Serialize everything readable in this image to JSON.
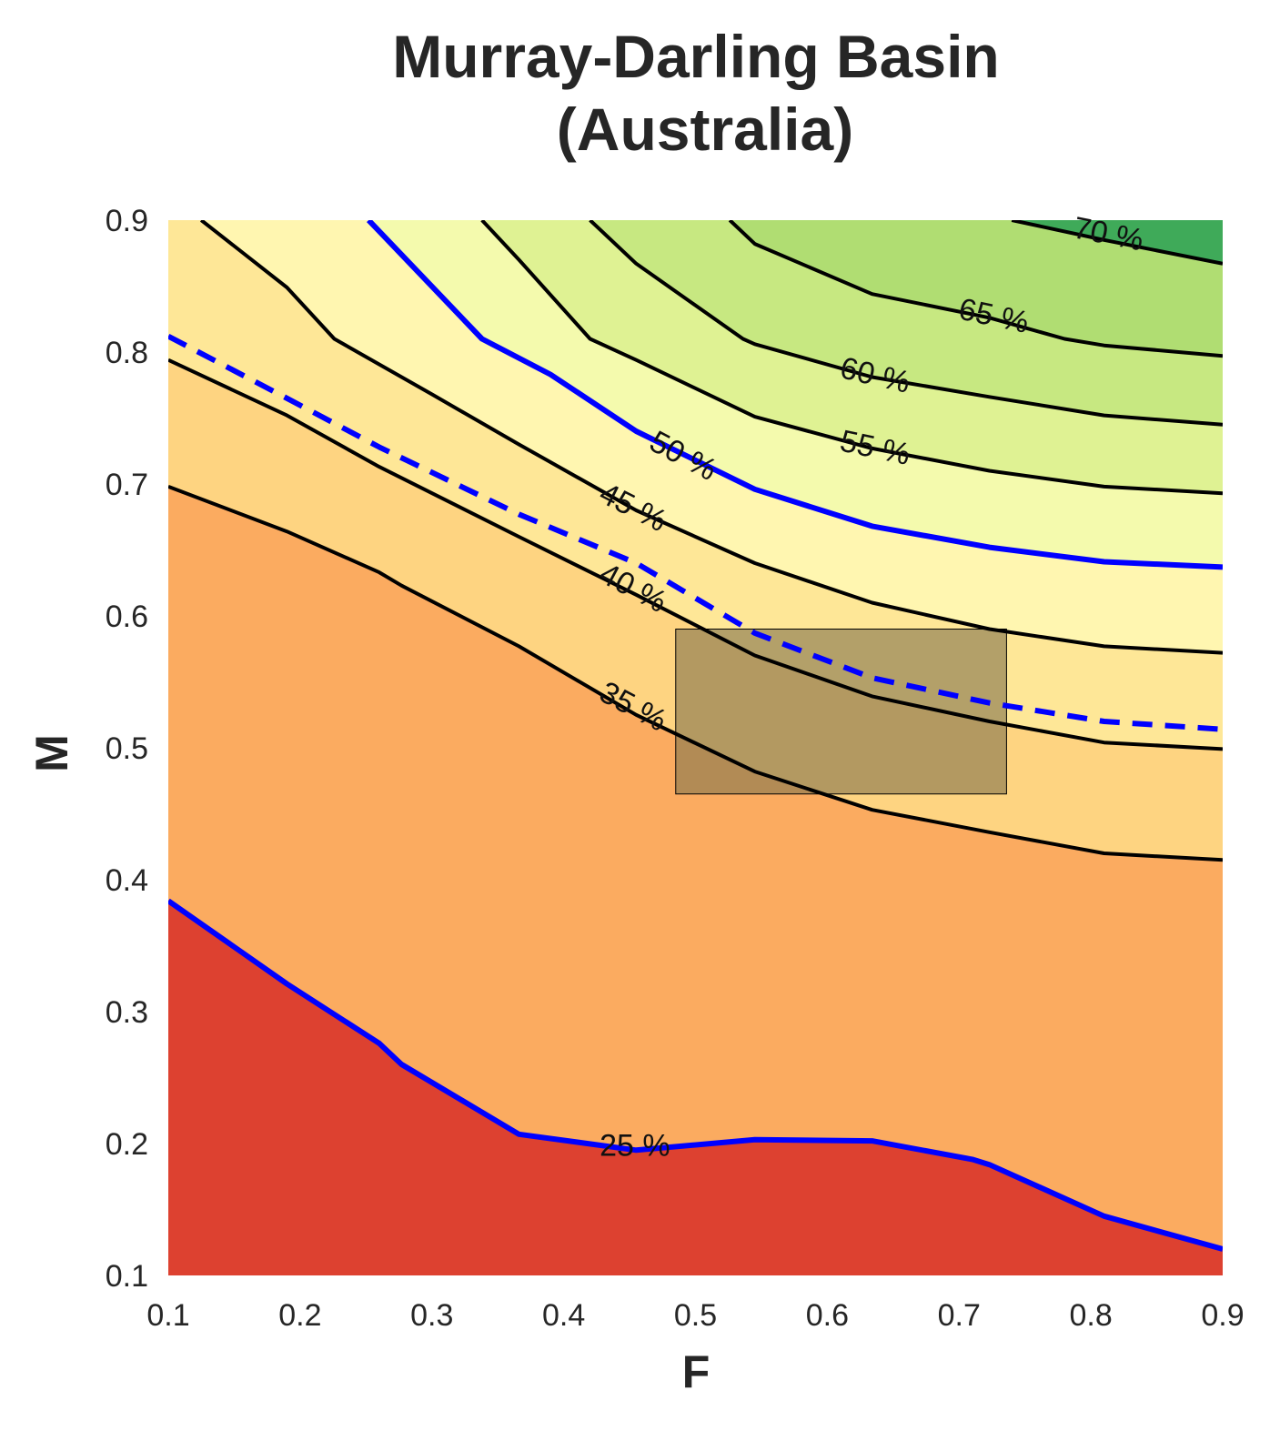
{
  "chart_data": {
    "type": "contour",
    "title": [
      "Murray-Darling Basin",
      "(Australia)"
    ],
    "xlabel": "F",
    "ylabel": "M",
    "xlim": [
      0.1,
      0.9
    ],
    "ylim": [
      0.1,
      0.9
    ],
    "x_ticks": [
      "0.1",
      "0.2",
      "0.3",
      "0.4",
      "0.5",
      "0.6",
      "0.7",
      "0.8",
      "0.9"
    ],
    "y_ticks": [
      "0.1",
      "0.2",
      "0.3",
      "0.4",
      "0.5",
      "0.6",
      "0.7",
      "0.8",
      "0.9"
    ],
    "grid": false,
    "fill_colors": [
      "#dd4130",
      "#fbab60",
      "#fed481",
      "#fee797",
      "#fff6b0",
      "#f4faad",
      "#dff293",
      "#c7e881",
      "#b0dd72",
      "#3faa59"
    ],
    "contours": [
      {
        "level": "25 %",
        "label": "25 %",
        "color": "#0000ff",
        "style": "solid",
        "points": [
          [
            0.1,
            0.384
          ],
          [
            0.19,
            0.321
          ],
          [
            0.26,
            0.276
          ],
          [
            0.277,
            0.26
          ],
          [
            0.366,
            0.207
          ],
          [
            0.455,
            0.195
          ],
          [
            0.545,
            0.203
          ],
          [
            0.634,
            0.202
          ],
          [
            0.71,
            0.188
          ],
          [
            0.723,
            0.184
          ],
          [
            0.81,
            0.145
          ],
          [
            0.9,
            0.12
          ]
        ]
      },
      {
        "level": "35 %",
        "label": "35 %",
        "color": "#000000",
        "style": "solid",
        "points": [
          [
            0.1,
            0.698
          ],
          [
            0.19,
            0.664
          ],
          [
            0.26,
            0.633
          ],
          [
            0.277,
            0.623
          ],
          [
            0.366,
            0.577
          ],
          [
            0.455,
            0.525
          ],
          [
            0.545,
            0.482
          ],
          [
            0.634,
            0.453
          ],
          [
            0.723,
            0.436
          ],
          [
            0.81,
            0.42
          ],
          [
            0.9,
            0.415
          ]
        ]
      },
      {
        "level": "40 %",
        "label": "40 %",
        "color": "#000000",
        "style": "solid",
        "points": [
          [
            0.1,
            0.794
          ],
          [
            0.19,
            0.752
          ],
          [
            0.26,
            0.713
          ],
          [
            0.366,
            0.66
          ],
          [
            0.455,
            0.616
          ],
          [
            0.545,
            0.57
          ],
          [
            0.634,
            0.539
          ],
          [
            0.723,
            0.52
          ],
          [
            0.81,
            0.504
          ],
          [
            0.9,
            0.499
          ]
        ]
      },
      {
        "level": "38 %",
        "label": "",
        "color": "#0000ff",
        "style": "dashed",
        "points": [
          [
            0.1,
            0.812
          ],
          [
            0.19,
            0.765
          ],
          [
            0.26,
            0.728
          ],
          [
            0.366,
            0.677
          ],
          [
            0.455,
            0.64
          ],
          [
            0.545,
            0.587
          ],
          [
            0.634,
            0.553
          ],
          [
            0.723,
            0.534
          ],
          [
            0.81,
            0.52
          ],
          [
            0.9,
            0.514
          ]
        ]
      },
      {
        "level": "45 %",
        "label": "45 %",
        "color": "#000000",
        "style": "solid",
        "points": [
          [
            0.125,
            0.9
          ],
          [
            0.19,
            0.849
          ],
          [
            0.226,
            0.81
          ],
          [
            0.3,
            0.768
          ],
          [
            0.366,
            0.73
          ],
          [
            0.455,
            0.68
          ],
          [
            0.545,
            0.64
          ],
          [
            0.634,
            0.61
          ],
          [
            0.723,
            0.59
          ],
          [
            0.81,
            0.577
          ],
          [
            0.9,
            0.572
          ]
        ]
      },
      {
        "level": "50 %",
        "label": "50 %",
        "color": "#0000ff",
        "style": "solid",
        "points": [
          [
            0.252,
            0.9
          ],
          [
            0.338,
            0.81
          ],
          [
            0.39,
            0.783
          ],
          [
            0.455,
            0.74
          ],
          [
            0.545,
            0.696
          ],
          [
            0.634,
            0.668
          ],
          [
            0.723,
            0.652
          ],
          [
            0.81,
            0.641
          ],
          [
            0.9,
            0.637
          ]
        ]
      },
      {
        "level": "55 %",
        "label": "55 %",
        "color": "#000000",
        "style": "solid",
        "points": [
          [
            0.338,
            0.9
          ],
          [
            0.366,
            0.87
          ],
          [
            0.42,
            0.81
          ],
          [
            0.455,
            0.794
          ],
          [
            0.545,
            0.751
          ],
          [
            0.634,
            0.727
          ],
          [
            0.723,
            0.71
          ],
          [
            0.81,
            0.698
          ],
          [
            0.9,
            0.693
          ]
        ]
      },
      {
        "level": "60 %",
        "label": "60 %",
        "color": "#000000",
        "style": "solid",
        "points": [
          [
            0.42,
            0.9
          ],
          [
            0.455,
            0.867
          ],
          [
            0.536,
            0.81
          ],
          [
            0.545,
            0.806
          ],
          [
            0.634,
            0.781
          ],
          [
            0.723,
            0.766
          ],
          [
            0.81,
            0.752
          ],
          [
            0.9,
            0.745
          ]
        ]
      },
      {
        "level": "65 %",
        "label": "65 %",
        "color": "#000000",
        "style": "solid",
        "points": [
          [
            0.526,
            0.9
          ],
          [
            0.545,
            0.882
          ],
          [
            0.634,
            0.844
          ],
          [
            0.723,
            0.826
          ],
          [
            0.78,
            0.81
          ],
          [
            0.81,
            0.805
          ],
          [
            0.9,
            0.797
          ]
        ]
      },
      {
        "level": "70 %",
        "label": "70 %",
        "color": "#000000",
        "style": "solid",
        "points": [
          [
            0.74,
            0.9
          ],
          [
            0.81,
            0.885
          ],
          [
            0.9,
            0.867
          ]
        ]
      }
    ],
    "label_positions": [
      {
        "text": "25 %",
        "x": 0.454,
        "y": 0.197,
        "angle": 0
      },
      {
        "text": "35 %",
        "x": 0.452,
        "y": 0.53,
        "angle": 28
      },
      {
        "text": "40 %",
        "x": 0.452,
        "y": 0.62,
        "angle": 28
      },
      {
        "text": "45 %",
        "x": 0.452,
        "y": 0.681,
        "angle": 27
      },
      {
        "text": "50 %",
        "x": 0.49,
        "y": 0.72,
        "angle": 28
      },
      {
        "text": "55 %",
        "x": 0.636,
        "y": 0.726,
        "angle": 12
      },
      {
        "text": "60 %",
        "x": 0.636,
        "y": 0.781,
        "angle": 13
      },
      {
        "text": "65 %",
        "x": 0.726,
        "y": 0.826,
        "angle": 12
      },
      {
        "text": "70 %",
        "x": 0.813,
        "y": 0.888,
        "angle": 11
      }
    ],
    "highlight_box": {
      "x0": 0.485,
      "x1": 0.736,
      "y0": 0.465,
      "y1": 0.59,
      "color": "#8a7a50",
      "opacity": 0.65
    }
  }
}
